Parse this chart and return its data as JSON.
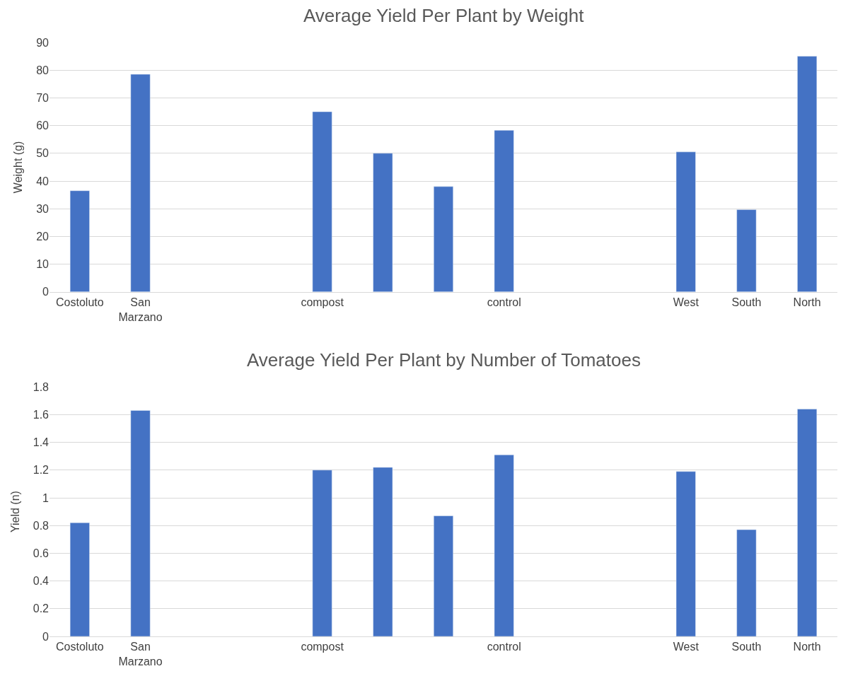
{
  "chart_data": [
    {
      "type": "bar",
      "title": "Average Yield Per Plant by Weight",
      "ylabel": "Weight (g)",
      "categories": [
        "Costoluto",
        "San Marzano",
        null,
        null,
        "compost",
        null,
        null,
        "control",
        null,
        null,
        "West",
        "South",
        "North"
      ],
      "values": [
        36.5,
        78.5,
        null,
        null,
        65,
        50,
        38,
        58.3,
        null,
        null,
        50.5,
        29.7,
        85
      ],
      "color": "#4472c4",
      "ylim": [
        0,
        90
      ],
      "yticks": [
        0,
        10,
        20,
        30,
        40,
        50,
        60,
        70,
        80,
        90
      ],
      "grid": "y"
    },
    {
      "type": "bar",
      "title": "Average Yield Per Plant by Number of Tomatoes",
      "ylabel": "Yield (n)",
      "categories": [
        "Costoluto",
        "San Marzano",
        null,
        null,
        "compost",
        null,
        null,
        "control",
        null,
        null,
        "West",
        "South",
        "North"
      ],
      "values": [
        0.82,
        1.63,
        null,
        null,
        1.2,
        1.22,
        0.87,
        1.31,
        null,
        null,
        1.19,
        0.77,
        1.64
      ],
      "color": "#4472c4",
      "ylim": [
        0,
        1.8
      ],
      "yticks": [
        0,
        0.2,
        0.4,
        0.6,
        0.8,
        1,
        1.2,
        1.4,
        1.6,
        1.8
      ],
      "grid": "y"
    }
  ]
}
